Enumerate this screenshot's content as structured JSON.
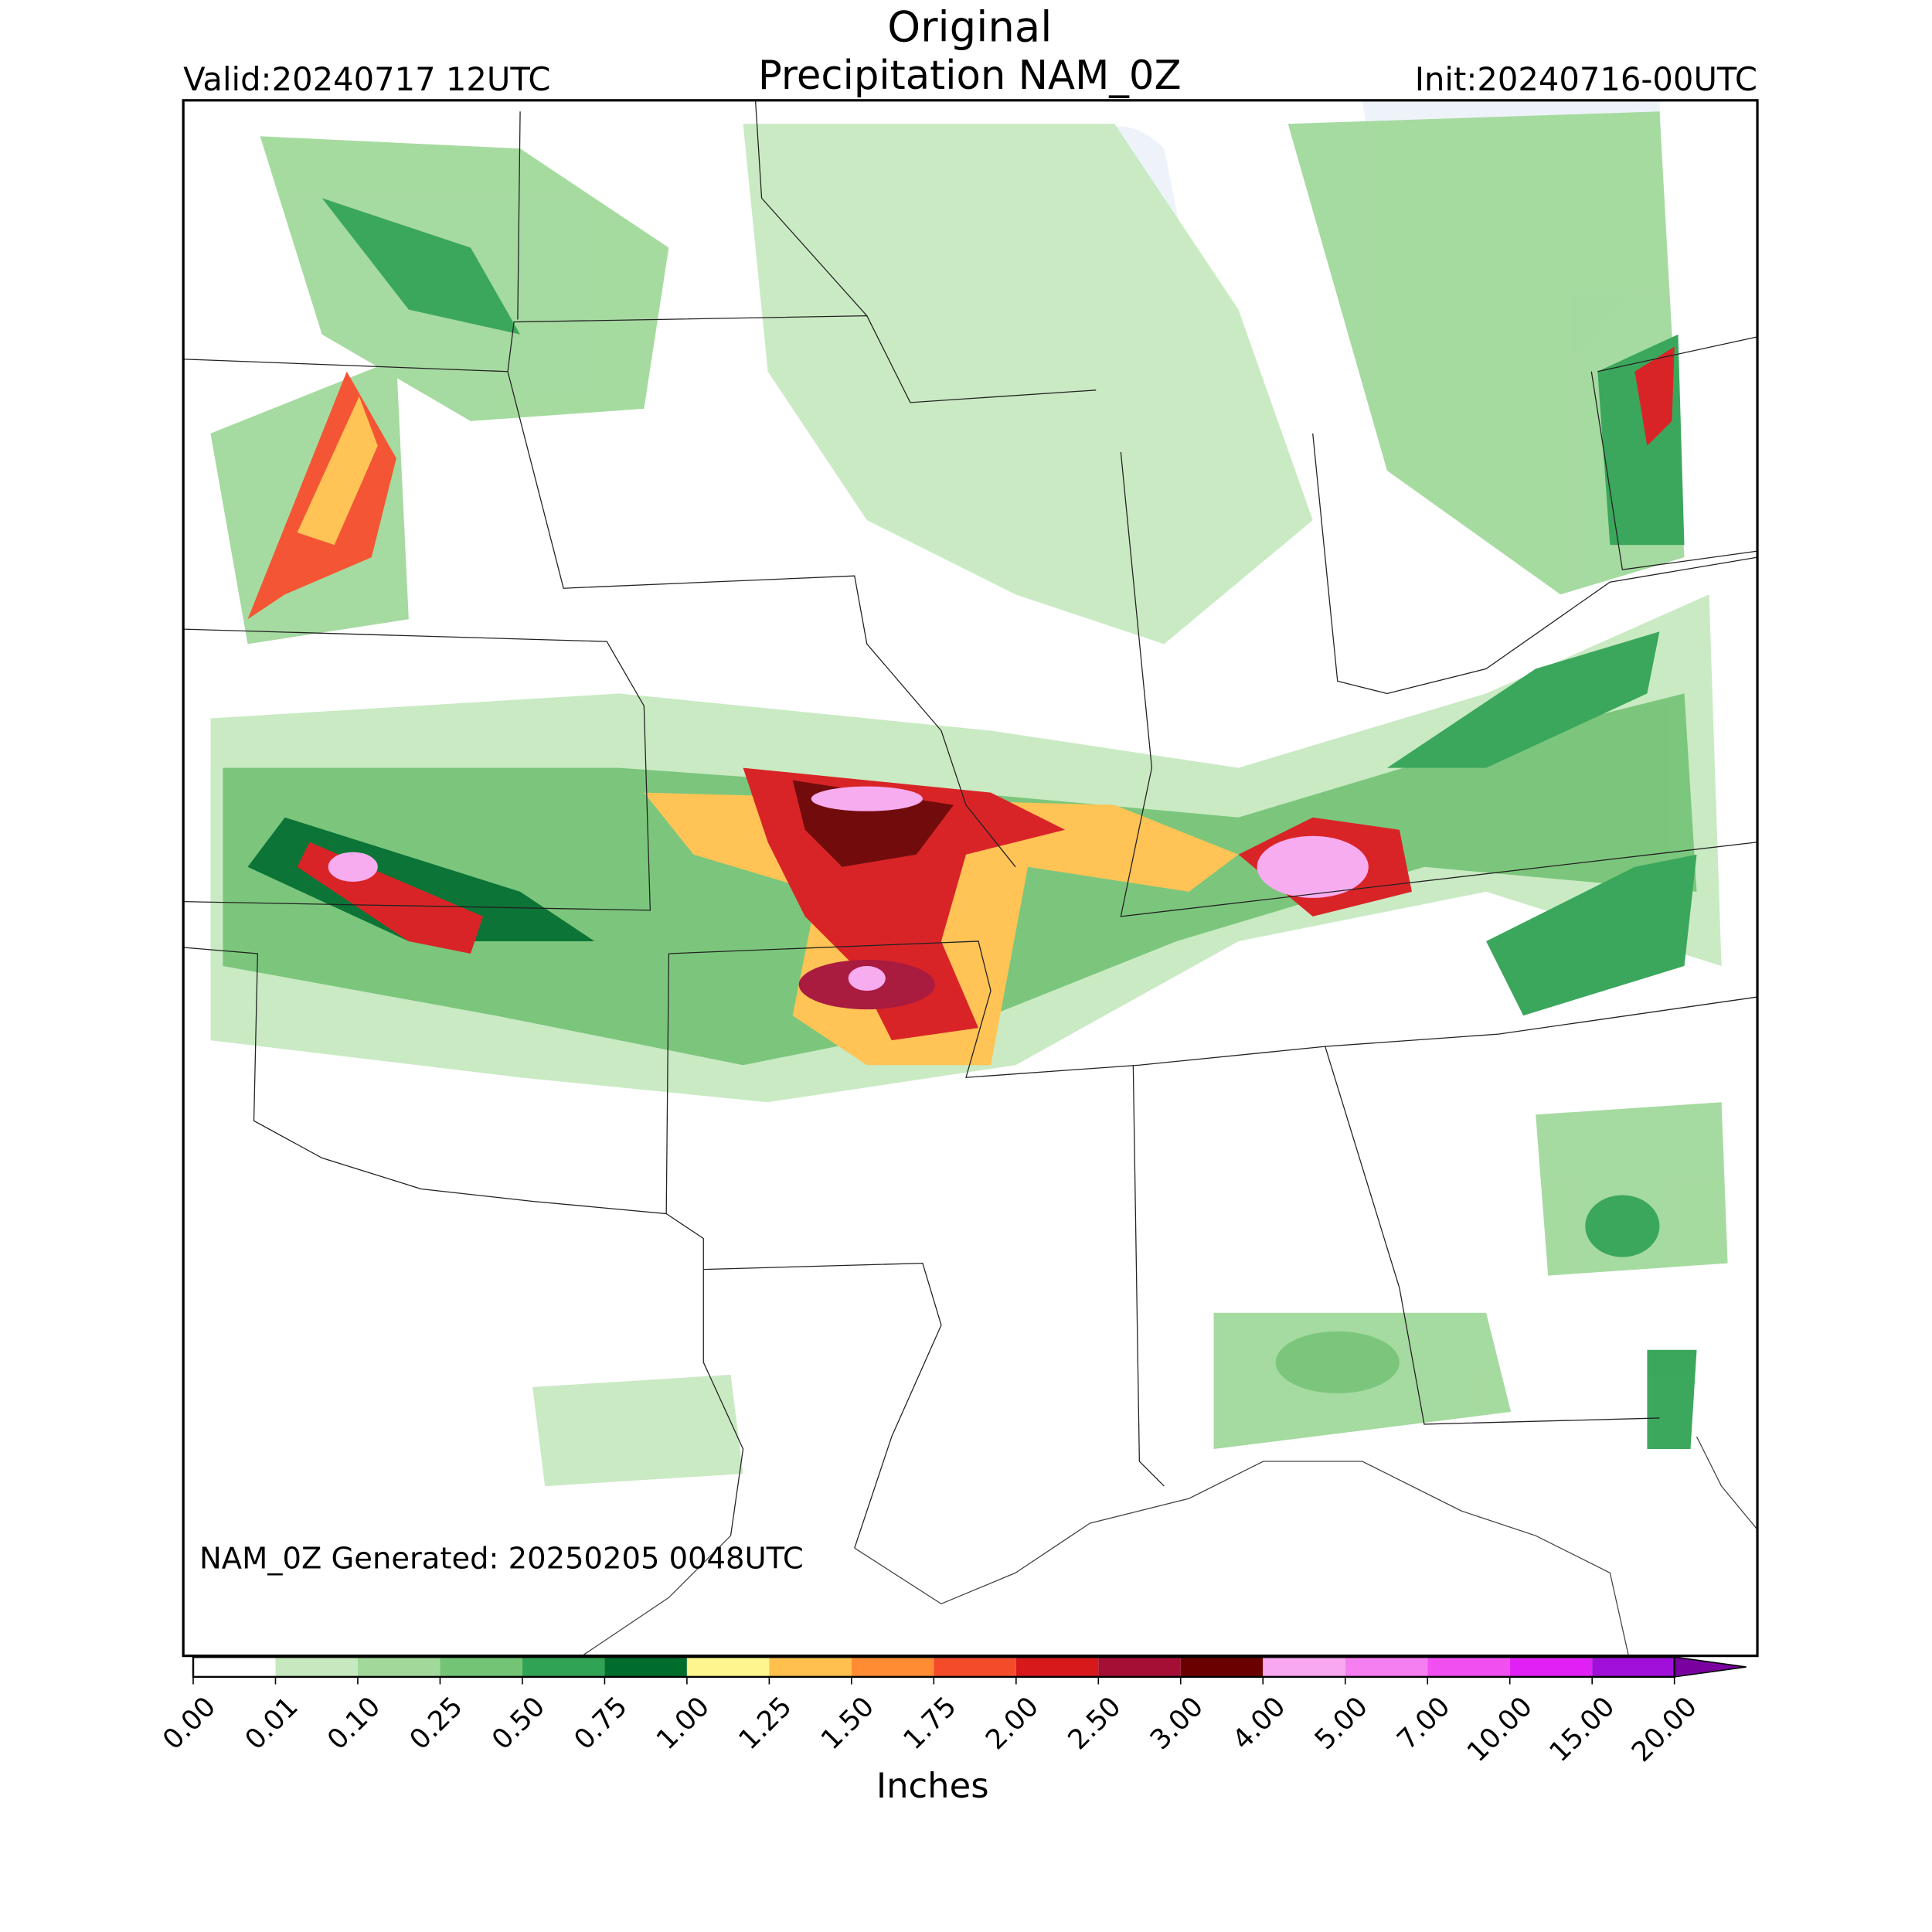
{
  "map": {
    "title": "Original",
    "subtitle": "Precipitation NAM_0Z",
    "valid": "Valid:20240717 12UTC",
    "init": "Init:20240716-00UTC",
    "generated": "NAM_0Z Generated: 20250205 0048UTC"
  },
  "colorbar": {
    "label": "Inches",
    "ticks": [
      {
        "value": 0,
        "label": "0.00"
      },
      {
        "value": 0.01,
        "label": "0.01"
      },
      {
        "value": 0.1,
        "label": "0.10"
      },
      {
        "value": 0.25,
        "label": "0.25"
      },
      {
        "value": 0.5,
        "label": "0.50"
      },
      {
        "value": 0.75,
        "label": "0.75"
      },
      {
        "value": 1,
        "label": "1.00"
      },
      {
        "value": 1.25,
        "label": "1.25"
      },
      {
        "value": 1.5,
        "label": "1.50"
      },
      {
        "value": 1.75,
        "label": "1.75"
      },
      {
        "value": 2,
        "label": "2.00"
      },
      {
        "value": 2.5,
        "label": "2.50"
      },
      {
        "value": 3,
        "label": "3.00"
      },
      {
        "value": 4,
        "label": "4.00"
      },
      {
        "value": 5,
        "label": "5.00"
      },
      {
        "value": 7,
        "label": "7.00"
      },
      {
        "value": 10,
        "label": "10.00"
      },
      {
        "value": 15,
        "label": "15.00"
      },
      {
        "value": 20,
        "label": "20.00"
      }
    ],
    "colors": [
      "#ffffff",
      "#c7e9c0",
      "#a1d99b",
      "#74c476",
      "#31a354",
      "#006d2c",
      "#fff68f",
      "#ffc04d",
      "#ff8c33",
      "#f44c2a",
      "#d7191c",
      "#a50f35",
      "#6b0000",
      "#f7a8f0",
      "#f57ef0",
      "#f050f0",
      "#e020f5",
      "#a010d8"
    ],
    "extend_color": "#7a00a0"
  }
}
